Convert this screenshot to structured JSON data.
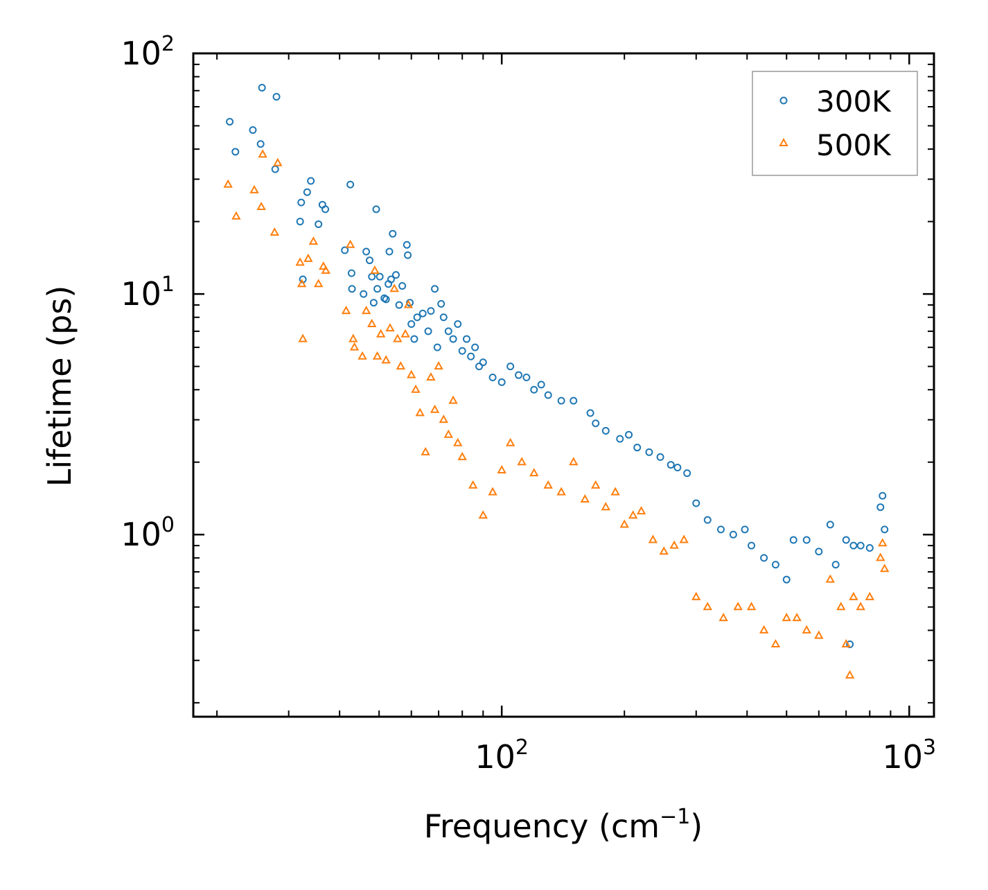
{
  "chart_data": {
    "type": "scatter",
    "xscale": "log",
    "yscale": "log",
    "xlabel": {
      "base": "Frequency (cm",
      "sup": "−1",
      "tail": ")"
    },
    "ylabel": "Lifetime (ps)",
    "xlim": [
      17.5,
      1150
    ],
    "ylim": [
      0.175,
      100
    ],
    "xticks": [
      {
        "value": 100,
        "base": "10",
        "exp": "2"
      },
      {
        "value": 1000,
        "base": "10",
        "exp": "3"
      }
    ],
    "yticks": [
      {
        "value": 1,
        "base": "10",
        "exp": "0"
      },
      {
        "value": 10,
        "base": "10",
        "exp": "1"
      },
      {
        "value": 100,
        "base": "10",
        "exp": "2"
      }
    ],
    "legend_position": "top-right",
    "series": [
      {
        "name": "300K",
        "marker": "circle",
        "color": "#1f77b4",
        "points": [
          [
            21.5,
            52
          ],
          [
            22.2,
            39
          ],
          [
            24.5,
            48
          ],
          [
            25.6,
            42
          ],
          [
            25.8,
            72
          ],
          [
            27.8,
            33
          ],
          [
            28.0,
            66
          ],
          [
            32.0,
            20
          ],
          [
            32.2,
            24
          ],
          [
            32.5,
            11.5
          ],
          [
            33.3,
            26.5
          ],
          [
            34.0,
            29.5
          ],
          [
            35.5,
            19.5
          ],
          [
            36.3,
            23.5
          ],
          [
            36.9,
            22.5
          ],
          [
            41.2,
            15.2
          ],
          [
            42.5,
            28.5
          ],
          [
            42.8,
            12.2
          ],
          [
            42.9,
            10.5
          ],
          [
            45.8,
            10.0
          ],
          [
            46.5,
            15.0
          ],
          [
            47.4,
            13.8
          ],
          [
            48.0,
            11.8
          ],
          [
            48.5,
            9.2
          ],
          [
            49.2,
            22.5
          ],
          [
            49.5,
            10.5
          ],
          [
            50.2,
            11.8
          ],
          [
            51.5,
            9.6
          ],
          [
            52.0,
            9.5
          ],
          [
            52.7,
            11.0
          ],
          [
            53.0,
            15.0
          ],
          [
            53.5,
            11.5
          ],
          [
            54.0,
            17.8
          ],
          [
            55.0,
            12.0
          ],
          [
            56.0,
            9.0
          ],
          [
            57.0,
            10.8
          ],
          [
            58.5,
            16.0
          ],
          [
            58.8,
            14.5
          ],
          [
            59.5,
            9.2
          ],
          [
            60.0,
            7.5
          ],
          [
            61.0,
            6.5
          ],
          [
            62.0,
            8.0
          ],
          [
            64.0,
            8.3
          ],
          [
            66.0,
            7.0
          ],
          [
            67.0,
            8.5
          ],
          [
            68.5,
            10.5
          ],
          [
            69.5,
            6.0
          ],
          [
            71.0,
            9.1
          ],
          [
            72.0,
            8.0
          ],
          [
            74.0,
            7.0
          ],
          [
            76.0,
            6.5
          ],
          [
            78.0,
            7.5
          ],
          [
            80.0,
            5.8
          ],
          [
            82.0,
            6.5
          ],
          [
            84.0,
            5.5
          ],
          [
            86.0,
            6.0
          ],
          [
            88.0,
            5.0
          ],
          [
            90.0,
            5.2
          ],
          [
            95.0,
            4.5
          ],
          [
            100.0,
            4.3
          ],
          [
            105.0,
            5.0
          ],
          [
            110.0,
            4.6
          ],
          [
            115.0,
            4.5
          ],
          [
            120.0,
            4.0
          ],
          [
            125.0,
            4.2
          ],
          [
            130.0,
            3.8
          ],
          [
            140.0,
            3.6
          ],
          [
            150.0,
            3.6
          ],
          [
            165.0,
            3.2
          ],
          [
            170.0,
            2.9
          ],
          [
            180.0,
            2.7
          ],
          [
            195.0,
            2.5
          ],
          [
            205.0,
            2.6
          ],
          [
            215.0,
            2.3
          ],
          [
            230.0,
            2.2
          ],
          [
            245.0,
            2.1
          ],
          [
            260.0,
            1.95
          ],
          [
            270.0,
            1.9
          ],
          [
            285.0,
            1.8
          ],
          [
            300.0,
            1.35
          ],
          [
            320.0,
            1.15
          ],
          [
            345.0,
            1.05
          ],
          [
            370.0,
            1.0
          ],
          [
            395.0,
            1.05
          ],
          [
            410.0,
            0.9
          ],
          [
            440.0,
            0.8
          ],
          [
            470.0,
            0.75
          ],
          [
            500.0,
            0.65
          ],
          [
            520.0,
            0.95
          ],
          [
            560.0,
            0.95
          ],
          [
            600.0,
            0.85
          ],
          [
            640.0,
            1.1
          ],
          [
            660.0,
            0.75
          ],
          [
            700.0,
            0.95
          ],
          [
            715.0,
            0.35
          ],
          [
            730.0,
            0.9
          ],
          [
            760.0,
            0.9
          ],
          [
            800.0,
            0.88
          ],
          [
            850.0,
            1.3
          ],
          [
            860.0,
            1.45
          ],
          [
            870.0,
            1.05
          ]
        ]
      },
      {
        "name": "500K",
        "marker": "triangle",
        "color": "#ff7f0e",
        "points": [
          [
            21.3,
            28.5
          ],
          [
            22.3,
            21.0
          ],
          [
            24.7,
            27.0
          ],
          [
            25.7,
            23.0
          ],
          [
            25.9,
            38.0
          ],
          [
            27.7,
            18.0
          ],
          [
            28.2,
            35.0
          ],
          [
            32.0,
            13.5
          ],
          [
            32.3,
            11.0
          ],
          [
            32.5,
            6.5
          ],
          [
            33.5,
            14.0
          ],
          [
            34.5,
            16.5
          ],
          [
            35.5,
            11.0
          ],
          [
            36.5,
            13.0
          ],
          [
            37.0,
            12.5
          ],
          [
            41.5,
            8.5
          ],
          [
            42.5,
            16.0
          ],
          [
            43.2,
            6.5
          ],
          [
            43.5,
            6.0
          ],
          [
            45.5,
            5.5
          ],
          [
            46.5,
            8.5
          ],
          [
            48.0,
            7.5
          ],
          [
            48.8,
            12.5
          ],
          [
            49.5,
            5.5
          ],
          [
            50.5,
            6.8
          ],
          [
            52.0,
            5.3
          ],
          [
            53.2,
            7.2
          ],
          [
            54.5,
            10.5
          ],
          [
            55.5,
            6.5
          ],
          [
            56.5,
            5.0
          ],
          [
            58.0,
            6.8
          ],
          [
            59.0,
            9.0
          ],
          [
            60.0,
            4.6
          ],
          [
            61.5,
            4.0
          ],
          [
            63.0,
            3.2
          ],
          [
            65.0,
            2.2
          ],
          [
            67.0,
            4.5
          ],
          [
            68.5,
            3.3
          ],
          [
            70.0,
            5.0
          ],
          [
            72.0,
            3.0
          ],
          [
            74.0,
            2.6
          ],
          [
            76.0,
            3.6
          ],
          [
            78.0,
            2.4
          ],
          [
            80.0,
            2.1
          ],
          [
            85.0,
            1.6
          ],
          [
            90.0,
            1.2
          ],
          [
            95.0,
            1.5
          ],
          [
            100.0,
            1.85
          ],
          [
            105.0,
            2.4
          ],
          [
            112.0,
            2.0
          ],
          [
            120.0,
            1.8
          ],
          [
            130.0,
            1.6
          ],
          [
            140.0,
            1.5
          ],
          [
            150.0,
            2.0
          ],
          [
            160.0,
            1.4
          ],
          [
            170.0,
            1.6
          ],
          [
            180.0,
            1.3
          ],
          [
            190.0,
            1.5
          ],
          [
            200.0,
            1.1
          ],
          [
            210.0,
            1.2
          ],
          [
            220.0,
            1.25
          ],
          [
            235.0,
            0.95
          ],
          [
            250.0,
            0.85
          ],
          [
            265.0,
            0.9
          ],
          [
            280.0,
            0.95
          ],
          [
            300.0,
            0.55
          ],
          [
            320.0,
            0.5
          ],
          [
            350.0,
            0.45
          ],
          [
            380.0,
            0.5
          ],
          [
            410.0,
            0.5
          ],
          [
            440.0,
            0.4
          ],
          [
            470.0,
            0.35
          ],
          [
            500.0,
            0.45
          ],
          [
            530.0,
            0.45
          ],
          [
            560.0,
            0.4
          ],
          [
            600.0,
            0.38
          ],
          [
            640.0,
            0.65
          ],
          [
            680.0,
            0.5
          ],
          [
            700.0,
            0.35
          ],
          [
            715.0,
            0.26
          ],
          [
            730.0,
            0.55
          ],
          [
            760.0,
            0.5
          ],
          [
            800.0,
            0.55
          ],
          [
            850.0,
            0.8
          ],
          [
            860.0,
            0.92
          ],
          [
            870.0,
            0.72
          ]
        ]
      }
    ]
  }
}
